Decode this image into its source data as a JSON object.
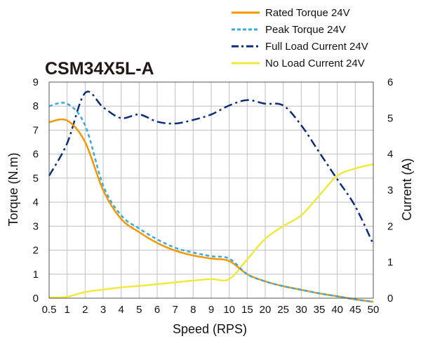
{
  "chart_data": {
    "type": "line",
    "title": "CSM34X5L-A",
    "xlabel": "Speed (RPS)",
    "ylabel_left": "Torque (N.m)",
    "ylabel_right": "Current (A)",
    "x_ticks": [
      "0.5",
      "1",
      "2",
      "3",
      "4",
      "5",
      "6",
      "7",
      "8",
      "9",
      "10",
      "15",
      "20",
      "25",
      "30",
      "35",
      "40",
      "45",
      "50"
    ],
    "y_left_ticks": [
      "0",
      "1",
      "2",
      "3",
      "4",
      "5",
      "6",
      "7",
      "8",
      "9"
    ],
    "y_right_ticks": [
      "0",
      "1",
      "2",
      "3",
      "4",
      "5",
      "6"
    ],
    "ylim_left": [
      0,
      9
    ],
    "ylim_right": [
      0,
      6
    ],
    "x_scale": "categorical-equal-spacing",
    "grid": true,
    "legend_position": "top-right",
    "series": [
      {
        "name": "Rated Torque 24V",
        "axis": "left",
        "color": "#f39800",
        "style": "solid",
        "x": [
          "0.5",
          "1",
          "2",
          "3",
          "4",
          "5",
          "6",
          "7",
          "8",
          "9",
          "10",
          "15",
          "20",
          "25",
          "30",
          "35",
          "40",
          "45",
          "50"
        ],
        "y": [
          7.33,
          7.4,
          6.5,
          4.5,
          3.3,
          2.75,
          2.3,
          1.98,
          1.78,
          1.65,
          1.55,
          1.0,
          0.7,
          0.5,
          0.35,
          0.2,
          0.08,
          -0.05,
          -0.15
        ]
      },
      {
        "name": "Peak Torque 24V",
        "axis": "left",
        "color": "#36a9e1",
        "style": "dashed",
        "x": [
          "0.5",
          "1",
          "2",
          "3",
          "4",
          "5",
          "6",
          "7",
          "8",
          "9",
          "10",
          "15",
          "20",
          "25",
          "30",
          "35",
          "40",
          "45",
          "50"
        ],
        "y": [
          8.0,
          8.1,
          7.2,
          4.7,
          3.45,
          2.9,
          2.45,
          2.1,
          1.9,
          1.75,
          1.65,
          1.0,
          0.7,
          0.5,
          0.35,
          0.2,
          0.08,
          -0.05,
          -0.15
        ]
      },
      {
        "name": "Full Load Current 24V",
        "axis": "right",
        "color": "#0a2e7a",
        "style": "dashdot",
        "x": [
          "0.5",
          "1",
          "2",
          "3",
          "4",
          "5",
          "6",
          "7",
          "8",
          "9",
          "10",
          "15",
          "20",
          "25",
          "30",
          "35",
          "40",
          "45",
          "50"
        ],
        "y": [
          3.4,
          4.3,
          5.7,
          5.3,
          5.0,
          5.1,
          4.9,
          4.85,
          4.95,
          5.1,
          5.35,
          5.5,
          5.4,
          5.35,
          4.8,
          4.05,
          3.3,
          2.55,
          1.5
        ]
      },
      {
        "name": "No Load Current 24V",
        "axis": "right",
        "color": "#f0e93a",
        "style": "solid",
        "x": [
          "0.5",
          "1",
          "2",
          "3",
          "4",
          "5",
          "6",
          "7",
          "8",
          "9",
          "10",
          "15",
          "20",
          "25",
          "30",
          "35",
          "40",
          "45",
          "50"
        ],
        "y": [
          0.02,
          0.04,
          0.17,
          0.24,
          0.3,
          0.34,
          0.39,
          0.44,
          0.49,
          0.53,
          0.53,
          1.08,
          1.65,
          2.0,
          2.3,
          2.85,
          3.4,
          3.6,
          3.72
        ]
      }
    ]
  },
  "colors": {
    "grid": "#bfbfbf",
    "frame": "#555555",
    "title": "#231815"
  }
}
